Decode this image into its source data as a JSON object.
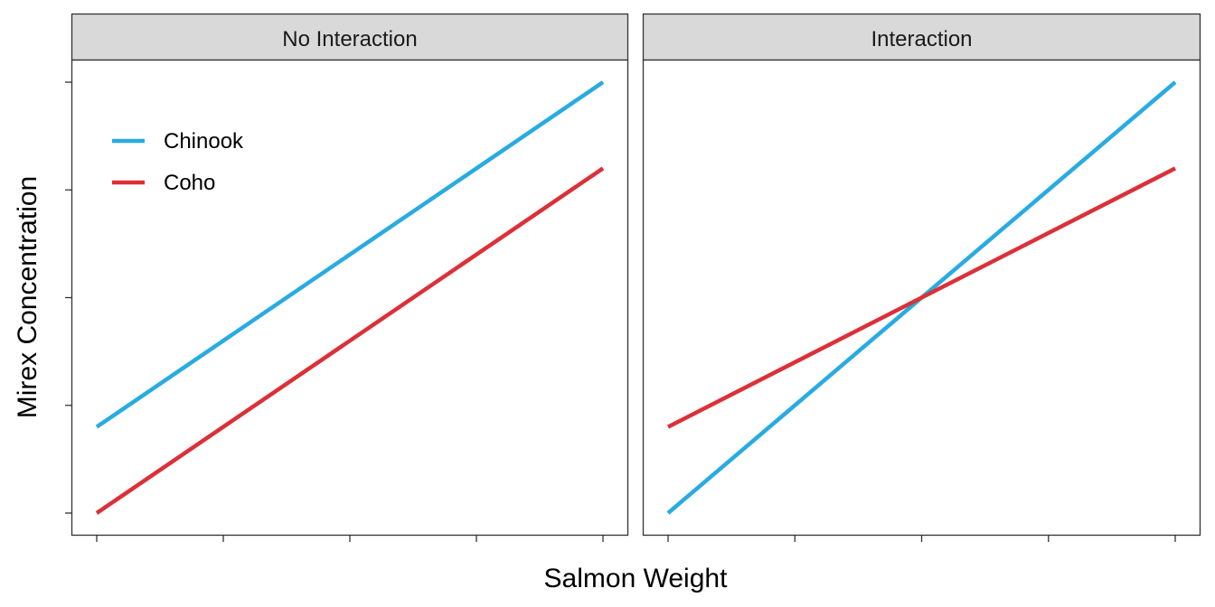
{
  "chart_data": {
    "type": "line",
    "xlabel": "Salmon Weight",
    "ylabel": "Mirex Concentration",
    "xlim": [
      0,
      4
    ],
    "ylim": [
      0,
      4
    ],
    "x_ticks": [
      0,
      1,
      2,
      3,
      4
    ],
    "y_ticks": [
      0,
      1,
      2,
      3,
      4
    ],
    "tick_labels_shown": false,
    "grid": false,
    "legend": {
      "placement": "top-left",
      "entries": [
        {
          "label": "Chinook",
          "color": "#29ABE2"
        },
        {
          "label": "Coho",
          "color": "#DC3038"
        }
      ]
    },
    "panels": [
      {
        "title": "No Interaction",
        "series": [
          {
            "name": "Chinook",
            "color": "#29ABE2",
            "x": [
              0,
              4
            ],
            "y": [
              0.8,
              4
            ]
          },
          {
            "name": "Coho",
            "color": "#DC3038",
            "x": [
              0,
              4
            ],
            "y": [
              0,
              3.2
            ]
          }
        ]
      },
      {
        "title": "Interaction",
        "series": [
          {
            "name": "Chinook",
            "color": "#29ABE2",
            "x": [
              0,
              4
            ],
            "y": [
              0,
              4
            ]
          },
          {
            "name": "Coho",
            "color": "#DC3038",
            "x": [
              0,
              4
            ],
            "y": [
              0.8,
              3.2
            ]
          }
        ]
      }
    ]
  }
}
